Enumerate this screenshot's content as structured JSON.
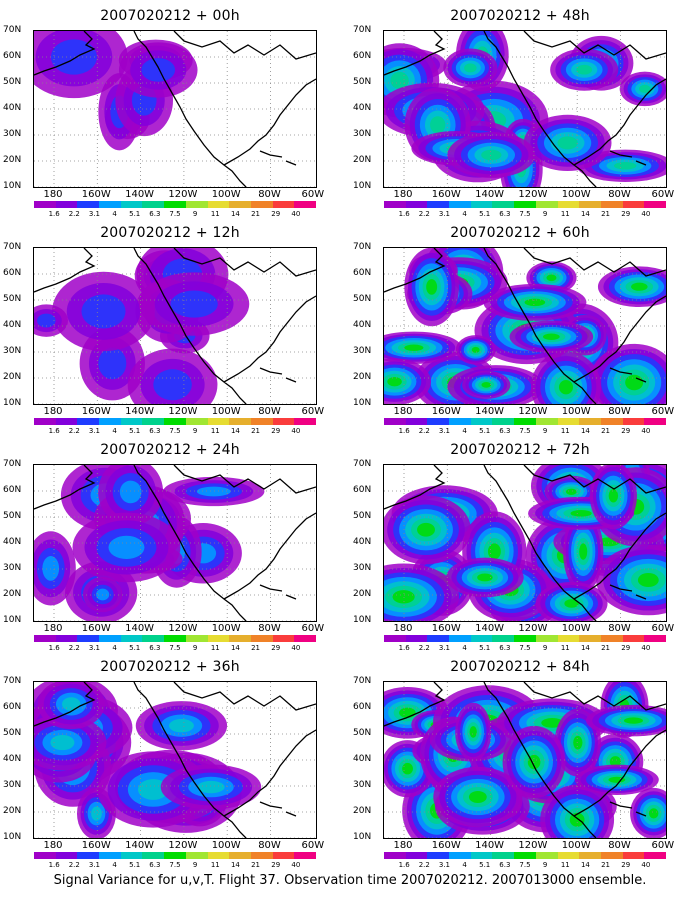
{
  "caption": "Signal Variance for u,v,T. Flight 37. Observation time 2007020212. 2007013000 ensemble.",
  "lat_labels": [
    "70N",
    "60N",
    "50N",
    "40N",
    "30N",
    "20N",
    "10N"
  ],
  "lon_labels": [
    "180",
    "160W",
    "140W",
    "120W",
    "100W",
    "80W",
    "60W"
  ],
  "colorbar": {
    "labels": [
      "1.6",
      "2.2",
      "3.1",
      "4",
      "5.1",
      "6.3",
      "7.5",
      "9",
      "11",
      "14",
      "21",
      "29",
      "40"
    ],
    "colors": [
      "#a000c8",
      "#8200dc",
      "#1e3cff",
      "#00a0ff",
      "#00c8c8",
      "#00d28c",
      "#00dc00",
      "#a0e632",
      "#e6dc32",
      "#e6af2d",
      "#f08228",
      "#fa3c3c",
      "#f00082"
    ]
  },
  "panels": [
    {
      "title": "2007020212 + 00h",
      "position": "left",
      "row": 0
    },
    {
      "title": "2007020212 + 12h",
      "position": "left",
      "row": 1
    },
    {
      "title": "2007020212 + 24h",
      "position": "left",
      "row": 2
    },
    {
      "title": "2007020212 + 36h",
      "position": "left",
      "row": 3
    },
    {
      "title": "2007020212 + 48h",
      "position": "right",
      "row": 0
    },
    {
      "title": "2007020212 + 60h",
      "position": "right",
      "row": 1
    },
    {
      "title": "2007020212 + 72h",
      "position": "right",
      "row": 2
    },
    {
      "title": "2007020212 + 84h",
      "position": "right",
      "row": 3
    }
  ]
}
